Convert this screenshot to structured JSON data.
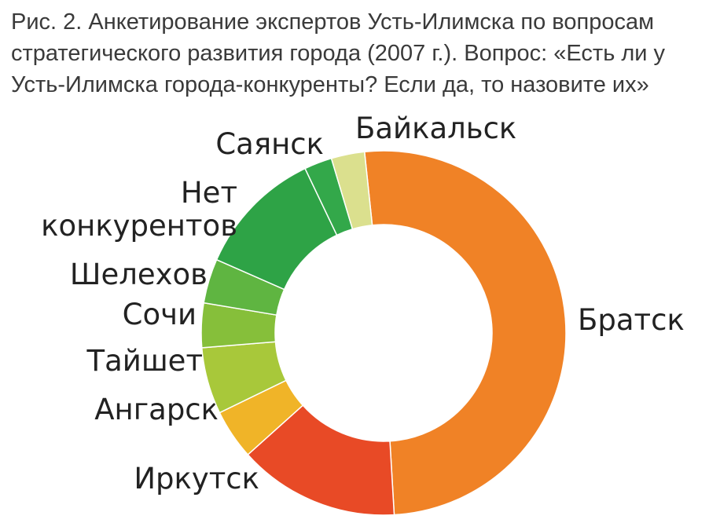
{
  "title": [
    "Рис. 2. Анкетирование экспертов Усть-Илимска по вопросам",
    "стратегического развития города (2007 г.). Вопрос: «Есть ли у",
    "Усть-Илимска города-конкуренты? Если да, то назовите их»"
  ],
  "chart_data": {
    "type": "pie",
    "variant": "donut",
    "title": "Рис. 2. Анкетирование экспертов Усть-Илимска по вопросам стратегического развития города (2007 г.). Вопрос: «Есть ли у Усть-Илимска города-конкуренты? Если да, то назовите их»",
    "unit": "share",
    "slices": [
      {
        "label": "Братск",
        "value": 51.5,
        "color": "#f08226"
      },
      {
        "label": "Иркутск",
        "value": 14.5,
        "color": "#e84a26"
      },
      {
        "label": "Ангарск",
        "value": 4.5,
        "color": "#f0b428"
      },
      {
        "label": "Тайшет",
        "value": 6.0,
        "color": "#a8c83a"
      },
      {
        "label": "Сочи",
        "value": 4.0,
        "color": "#86bf3a"
      },
      {
        "label": "Шелехов",
        "value": 4.0,
        "color": "#5fb541"
      },
      {
        "label": "Нет конкурентов",
        "label_lines": [
          "Нет",
          "конкурентов"
        ],
        "value": 11.5,
        "color": "#2ea346"
      },
      {
        "label": "Саянск",
        "value": 2.5,
        "color": "#33a84a"
      },
      {
        "label": "Байкальск",
        "value": 3.0,
        "color": "#dbe08e"
      }
    ]
  }
}
